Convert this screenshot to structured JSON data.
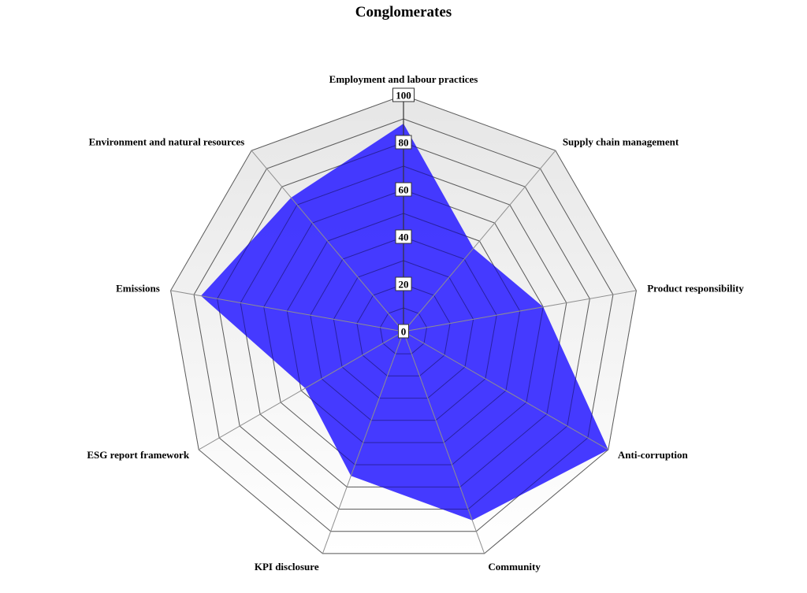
{
  "chart_data": {
    "type": "radar",
    "title": "Conglomerates",
    "categories": [
      "Employment and labour practices",
      "Supply chain management",
      "Product responsibility",
      "Anti-corruption",
      "Community",
      "KPI disclosure",
      "ESG report framework",
      "Emissions",
      "Environment and natural resources"
    ],
    "series": [
      {
        "values": [
          88,
          46,
          60,
          100,
          85,
          65,
          48,
          87,
          74
        ],
        "color": "#3b2fff"
      }
    ],
    "rlim": [
      0,
      100
    ],
    "ticks": [
      "0",
      "20",
      "40",
      "60",
      "80",
      "100"
    ],
    "grid": true,
    "legend": "none"
  }
}
